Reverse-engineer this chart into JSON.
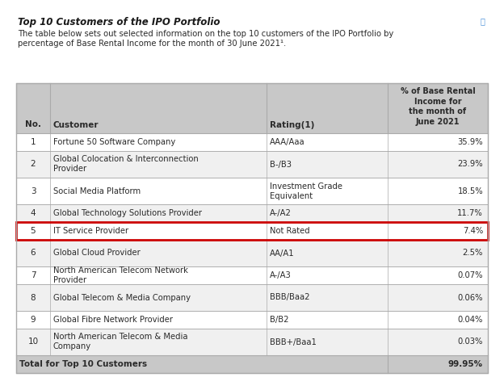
{
  "title": "Top 10 Customers of the IPO Portfolio",
  "subtitle_line1": "The table below sets out selected information on the top 10 customers of the IPO Portfolio by",
  "subtitle_line2": "percentage of Base Rental Income for the month of 30 June 2021¹.",
  "header_col3": "Rating(1)",
  "header_col4": "% of Base Rental\nIncome for\nthe month of\nJune 2021",
  "rows": [
    [
      "1",
      "Fortune 50 Software Company",
      "AAA/Aaa",
      "35.9%"
    ],
    [
      "2",
      "Global Colocation & Interconnection\nProvider",
      "B-/B3",
      "23.9%"
    ],
    [
      "3",
      "Social Media Platform",
      "Investment Grade\nEquivalent",
      "18.5%"
    ],
    [
      "4",
      "Global Technology Solutions Provider",
      "A-/A2",
      "11.7%"
    ],
    [
      "5",
      "IT Service Provider",
      "Not Rated",
      "7.4%"
    ],
    [
      "6",
      "Global Cloud Provider",
      "AA/A1",
      "2.5%"
    ],
    [
      "7",
      "North American Telecom Network\nProvider",
      "A-/A3",
      "0.07%"
    ],
    [
      "8",
      "Global Telecom & Media Company",
      "BBB/Baa2",
      "0.06%"
    ],
    [
      "9",
      "Global Fibre Network Provider",
      "B/B2",
      "0.04%"
    ],
    [
      "10",
      "North American Telecom & Media\nCompany",
      "BBB+/Baa1",
      "0.03%"
    ]
  ],
  "total_label": "Total for Top 10 Customers",
  "total_value": "99.95%",
  "highlighted_row_idx": 4,
  "highlight_color": "#cc0000",
  "header_bg": "#c8c8c8",
  "alt_row_bg": "#f0f0f0",
  "white_bg": "#ffffff",
  "border_color": "#aaaaaa",
  "text_color": "#2a2a2a",
  "title_color": "#1a1a1a",
  "note_color": "#555555"
}
